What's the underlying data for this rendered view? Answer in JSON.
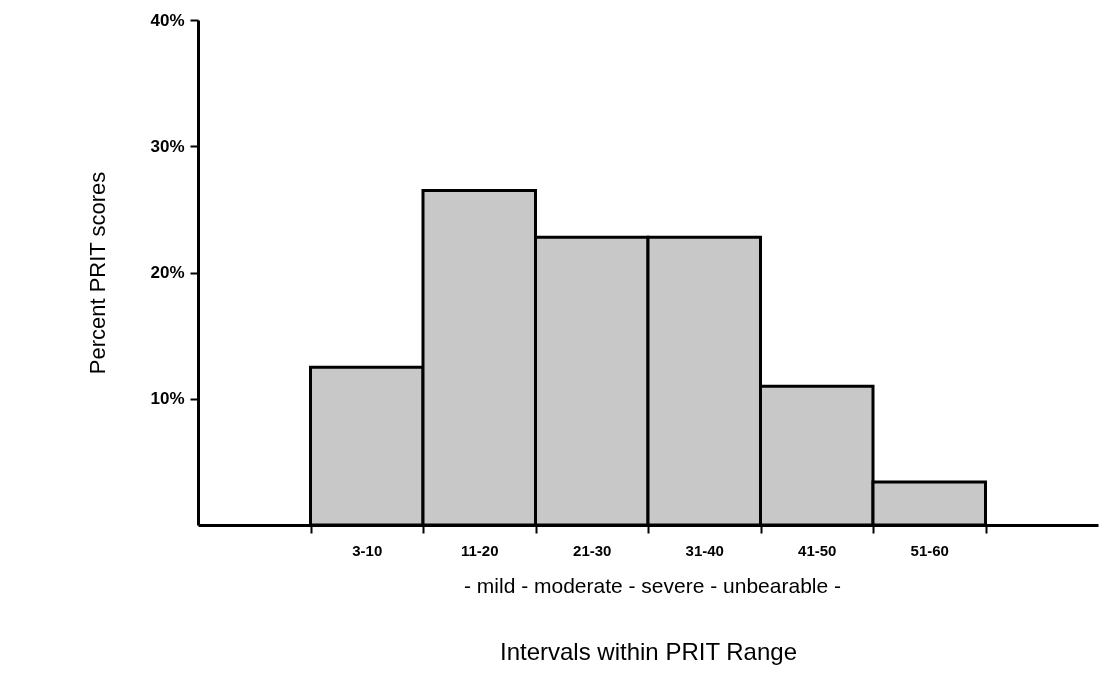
{
  "chart_data": {
    "type": "bar",
    "xlabel": "Intervals within PRIT Range",
    "ylabel": "Percent PRIT scores",
    "categories": [
      "3-10",
      "11-20",
      "21-30",
      "31-40",
      "41-50",
      "51-60"
    ],
    "values": [
      12.5,
      26.5,
      22.8,
      22.8,
      11,
      3.4
    ],
    "color": "#c8c8c8",
    "ylim": [
      0,
      40
    ],
    "yticks": [
      {
        "value": 10,
        "label": "10%"
      },
      {
        "value": 20,
        "label": "20%"
      },
      {
        "value": 30,
        "label": "30%"
      },
      {
        "value": 40,
        "label": "40%"
      }
    ],
    "annotations": [
      "-   mild   -   moderate   -   severe   -   unbearable -"
    ],
    "grid": false
  }
}
